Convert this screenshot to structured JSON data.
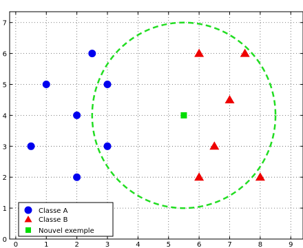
{
  "chart_data": {
    "type": "scatter",
    "title": "",
    "xlabel": "",
    "ylabel": "",
    "xlim": [
      -0.2,
      9.4
    ],
    "ylim": [
      0,
      7.35
    ],
    "xticks": [
      "0",
      "1",
      "2",
      "3",
      "4",
      "5",
      "6",
      "7",
      "8",
      "9"
    ],
    "yticks": [
      "0",
      "1",
      "2",
      "3",
      "4",
      "5",
      "6",
      "7"
    ],
    "grid": true,
    "legend_position": "bottom-left",
    "series": [
      {
        "name": "Classe A",
        "marker": "circle",
        "color": "#0000ee",
        "points": [
          [
            0.5,
            3
          ],
          [
            1,
            5
          ],
          [
            2,
            4
          ],
          [
            2,
            2
          ],
          [
            2.5,
            6
          ],
          [
            3,
            5
          ],
          [
            3,
            3
          ]
        ]
      },
      {
        "name": "Classe B",
        "marker": "triangle",
        "color": "#ee0000",
        "points": [
          [
            6,
            6
          ],
          [
            7.5,
            6
          ],
          [
            7,
            4.5
          ],
          [
            6.5,
            3
          ],
          [
            6,
            2
          ],
          [
            8,
            2
          ]
        ]
      },
      {
        "name": "Nouvel exemple",
        "marker": "square",
        "color": "#00dd00",
        "points": [
          [
            5.5,
            4
          ]
        ]
      }
    ],
    "circle": {
      "center": [
        5.5,
        4
      ],
      "radius": 3,
      "color": "#22dd22",
      "style": "dashed"
    }
  }
}
